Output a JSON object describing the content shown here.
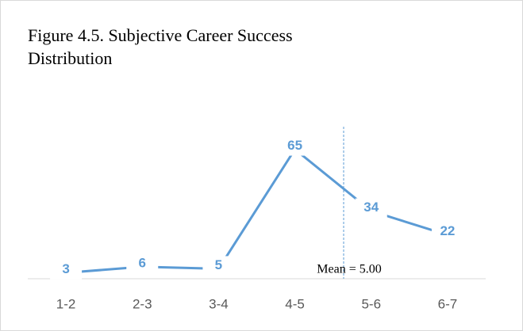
{
  "chart_data": {
    "type": "line",
    "title": "Figure 4.5. Subjective Career Success Distribution",
    "title_lines": [
      "Figure 4.5. Subjective Career Success",
      "Distribution"
    ],
    "categories": [
      "1-2",
      "2-3",
      "3-4",
      "4-5",
      "5-6",
      "6-7"
    ],
    "series": [
      {
        "name": "Subjective Career Success",
        "color": "#5b9bd5",
        "values": [
          3,
          6,
          5,
          65,
          34,
          22
        ]
      }
    ],
    "ylim": [
      0,
      70
    ],
    "annotation": "Mean = 5.00"
  }
}
